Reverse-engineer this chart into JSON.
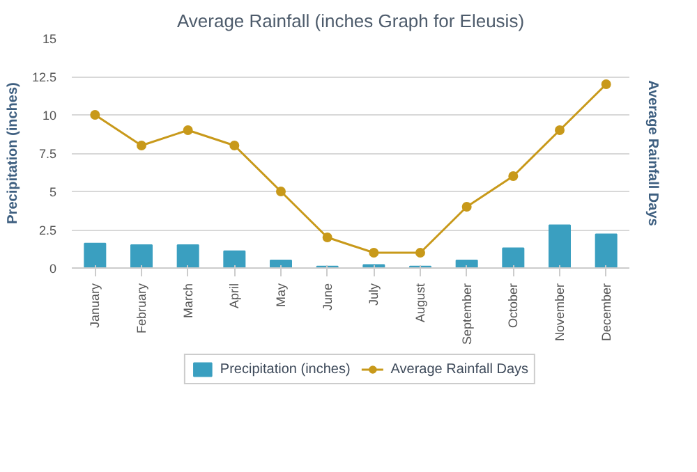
{
  "chart_data": {
    "type": "bar",
    "title": "Average Rainfall (inches Graph for Eleusis)",
    "ylabel": "Precipitation (inches)",
    "y2label": "Average Rainfall Days",
    "categories": [
      "January",
      "February",
      "March",
      "April",
      "May",
      "June",
      "July",
      "August",
      "September",
      "October",
      "November",
      "December"
    ],
    "series": [
      {
        "name": "Precipitation (inches)",
        "color": "#3a9fc0",
        "values": [
          1.6,
          1.5,
          1.5,
          1.1,
          0.5,
          0.1,
          0.2,
          0.1,
          0.5,
          1.3,
          2.8,
          2.2
        ]
      },
      {
        "name": "Average Rainfall Days",
        "type": "line",
        "color": "#c8991a",
        "marker": "circle",
        "values": [
          10,
          8,
          9,
          8,
          5,
          2,
          1,
          1,
          4,
          6,
          9,
          12
        ]
      }
    ],
    "ylim": [
      0,
      15
    ],
    "yticks": [
      0,
      2.5,
      5,
      7.5,
      10,
      12.5,
      15
    ],
    "grid": "y",
    "legend": "bottom"
  }
}
